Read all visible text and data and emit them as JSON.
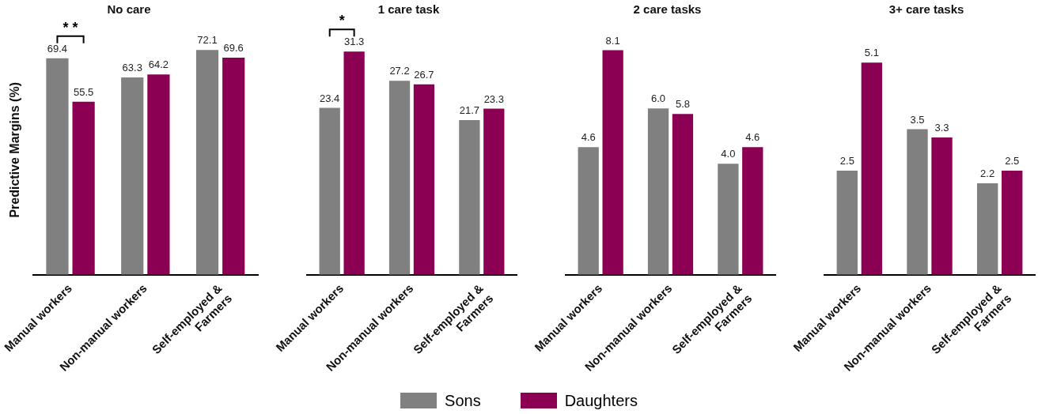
{
  "chart_data": [
    {
      "type": "bar",
      "title": "No care",
      "ylabel": "Predictive Margins (%)",
      "categories": [
        "Manual workers",
        "Non-manual workers",
        "Self-employed &\nFarmers"
      ],
      "series": [
        {
          "name": "Sons",
          "color": "#808080",
          "values": [
            69.4,
            63.3,
            72.1
          ],
          "value_labels": [
            "69.4",
            "63.3",
            "72.1"
          ]
        },
        {
          "name": "Daughters",
          "color": "#8b0052",
          "values": [
            55.5,
            64.2,
            69.6
          ],
          "value_labels": [
            "55.5",
            "64.2",
            "69.6"
          ]
        }
      ],
      "tick_labels": "x",
      "legend": "bottom",
      "annotations": [
        "* *"
      ]
    },
    {
      "type": "bar",
      "title": "1 care task",
      "categories": [
        "Manual workers",
        "Non-manual workers",
        "Self-employed &\nFarmers"
      ],
      "series": [
        {
          "color": "#808080",
          "values": [
            23.4,
            27.2,
            21.7
          ],
          "value_labels": [
            "23.4",
            "27.2",
            "21.7"
          ]
        },
        {
          "color": "#8b0052",
          "values": [
            31.3,
            26.7,
            23.3
          ],
          "value_labels": [
            "31.3",
            "26.7",
            "23.3"
          ]
        }
      ],
      "tick_labels": "x",
      "annotations": [
        "*"
      ]
    },
    {
      "type": "bar",
      "title": "2 care tasks",
      "categories": [
        "Manual workers",
        "Non-manual workers",
        "Self-employed &\nFarmers"
      ],
      "series": [
        {
          "color": "#808080",
          "values": [
            4.6,
            6.0,
            4.0
          ],
          "value_labels": [
            "4.6",
            "6.0",
            "4.0"
          ]
        },
        {
          "color": "#8b0052",
          "values": [
            8.1,
            5.8,
            4.6
          ],
          "value_labels": [
            "8.1",
            "5.8",
            "4.6"
          ]
        }
      ],
      "tick_labels": "x"
    },
    {
      "type": "bar",
      "title": "3+ care tasks",
      "categories": [
        "Manual workers",
        "Non-manual workers",
        "Self-employed &\nFarmers"
      ],
      "series": [
        {
          "color": "#808080",
          "values": [
            2.5,
            3.5,
            2.2
          ],
          "value_labels": [
            "2.5",
            "3.5",
            "2.2"
          ]
        },
        {
          "color": "#8b0052",
          "values": [
            5.1,
            3.3,
            2.5
          ],
          "value_labels": [
            "5.1",
            "3.3",
            "2.5"
          ]
        }
      ],
      "tick_labels": "x"
    }
  ]
}
